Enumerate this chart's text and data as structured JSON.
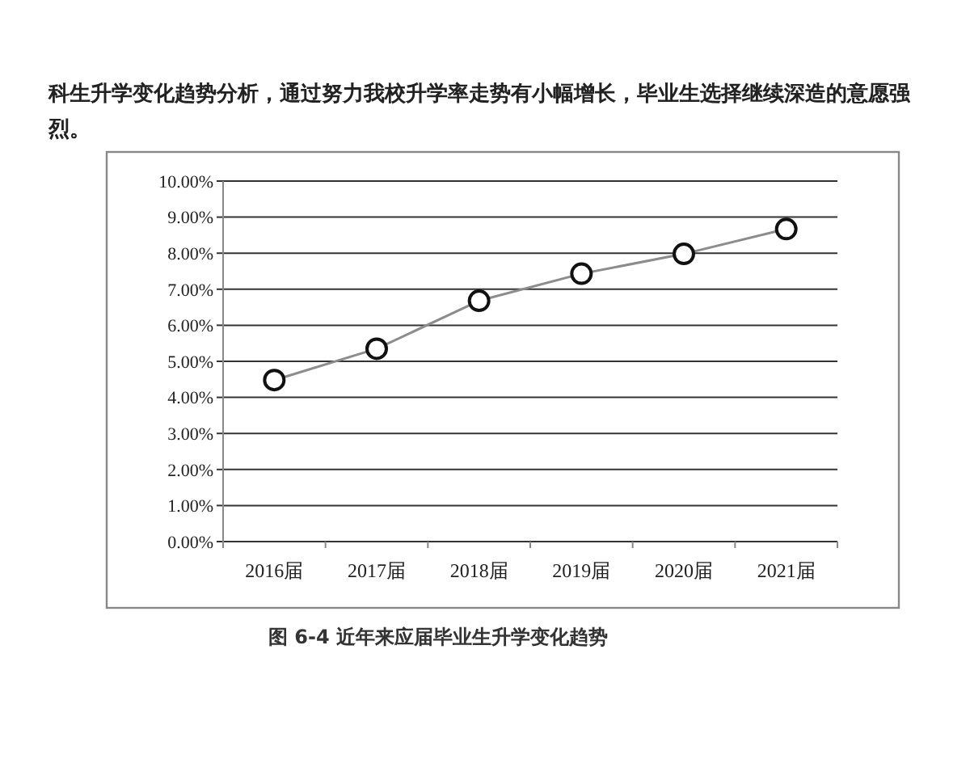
{
  "chart_data": {
    "type": "line",
    "title": "图 6-4  近年来应届毕业生升学变化趋势",
    "annotations": [
      "科生升学变化趋势分析，通过努力我校升学率走势有小幅增长，毕业生选择继续深造的意愿强烈。"
    ],
    "categories": [
      "2016届",
      "2017届",
      "2018届",
      "2019届",
      "2020届",
      "2021届"
    ],
    "series": [
      {
        "color": "#8c8c8c",
        "values": [
          4.48,
          5.35,
          6.68,
          7.43,
          7.98,
          8.67
        ]
      }
    ],
    "ylim": [
      0,
      10
    ],
    "yticks": [
      {
        "value": 0,
        "label": "0.00%"
      },
      {
        "value": 1,
        "label": "1.00%"
      },
      {
        "value": 2,
        "label": "2.00%"
      },
      {
        "value": 3,
        "label": "3.00%"
      },
      {
        "value": 4,
        "label": "4.00%"
      },
      {
        "value": 5,
        "label": "5.00%"
      },
      {
        "value": 6,
        "label": "6.00%"
      },
      {
        "value": 7,
        "label": "7.00%"
      },
      {
        "value": 8,
        "label": "8.00%"
      },
      {
        "value": 9,
        "label": "9.00%"
      },
      {
        "value": 10,
        "label": "10.00%"
      }
    ],
    "grid": "y",
    "marker": "circle",
    "line_style": "solid"
  }
}
